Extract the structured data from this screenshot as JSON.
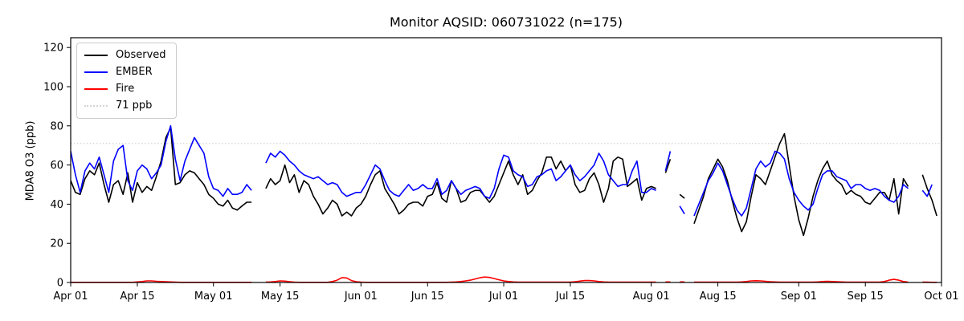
{
  "chart_data": {
    "type": "line",
    "title": "Monitor AQSID: 060731022 (n=175)",
    "xlabel": "",
    "ylabel": "MDA8 O3 (ppb)",
    "ylim": [
      0,
      125
    ],
    "y_ticks": [
      0,
      20,
      40,
      60,
      80,
      100,
      120
    ],
    "x_days_total": 183,
    "x_tick_days": [
      0,
      14,
      30,
      44,
      61,
      75,
      91,
      105,
      122,
      136,
      153,
      167,
      183
    ],
    "x_tick_labels": [
      "Apr 01",
      "Apr 15",
      "May 01",
      "May 15",
      "Jun 01",
      "Jun 15",
      "Jul 01",
      "Jul 15",
      "Aug 01",
      "Aug 15",
      "Sep 01",
      "Sep 15",
      "Oct 01"
    ],
    "grid": false,
    "legend_position": "upper-left",
    "reference_line": {
      "value": 71,
      "label": "71 ppb",
      "color": "#d3d3d3",
      "style": "dotted"
    },
    "legend": [
      {
        "id": "observed",
        "label": "Observed",
        "color": "#000000",
        "style": "solid"
      },
      {
        "id": "ember",
        "label": "EMBER",
        "color": "#0000ff",
        "style": "solid"
      },
      {
        "id": "fire",
        "label": "Fire",
        "color": "#ff0000",
        "style": "solid"
      },
      {
        "id": "ref71",
        "label": "71 ppb",
        "color": "#d3d3d3",
        "style": "dotted"
      }
    ],
    "series": [
      {
        "name": "Observed",
        "color": "#000000",
        "values": [
          52,
          46,
          45,
          53,
          57,
          55,
          61,
          50,
          41,
          50,
          52,
          45,
          56,
          41,
          51,
          46,
          49,
          47,
          54,
          62,
          74,
          79,
          50,
          51,
          55,
          57,
          56,
          53,
          50,
          45,
          43,
          40,
          39,
          42,
          38,
          37,
          39,
          41,
          41,
          null,
          null,
          48,
          53,
          50,
          52,
          60,
          51,
          55,
          46,
          52,
          50,
          44,
          40,
          35,
          38,
          42,
          40,
          34,
          36,
          34,
          38,
          40,
          44,
          50,
          55,
          57,
          48,
          44,
          40,
          35,
          37,
          40,
          41,
          41,
          39,
          44,
          45,
          51,
          43,
          41,
          52,
          48,
          41,
          42,
          46,
          47,
          47,
          44,
          41,
          44,
          50,
          56,
          62,
          55,
          50,
          55,
          45,
          47,
          52,
          56,
          64,
          64,
          58,
          62,
          57,
          60,
          50,
          46,
          47,
          53,
          56,
          50,
          41,
          48,
          62,
          64,
          63,
          49,
          51,
          53,
          42,
          48,
          49,
          48,
          null,
          56,
          63,
          null,
          45,
          43,
          null,
          30,
          37,
          44,
          53,
          58,
          63,
          59,
          52,
          42,
          33,
          26,
          31,
          44,
          55,
          53,
          50,
          57,
          64,
          71,
          76,
          60,
          44,
          32,
          24,
          33,
          44,
          52,
          58,
          62,
          55,
          52,
          50,
          45,
          47,
          45,
          44,
          41,
          40,
          43,
          46,
          46,
          42,
          53,
          35,
          53,
          49,
          null,
          null,
          55,
          48,
          42,
          34
        ]
      },
      {
        "name": "EMBER",
        "color": "#0000ff",
        "values": [
          67,
          55,
          46,
          57,
          61,
          58,
          64,
          55,
          46,
          62,
          68,
          70,
          52,
          47,
          57,
          60,
          58,
          53,
          56,
          60,
          72,
          80,
          63,
          52,
          62,
          68,
          74,
          70,
          66,
          54,
          48,
          47,
          44,
          48,
          45,
          45,
          46,
          50,
          47,
          null,
          null,
          61,
          66,
          64,
          67,
          65,
          62,
          60,
          57,
          55,
          54,
          53,
          54,
          52,
          50,
          51,
          50,
          46,
          44,
          45,
          46,
          46,
          50,
          55,
          60,
          58,
          52,
          47,
          45,
          44,
          47,
          50,
          47,
          48,
          50,
          48,
          48,
          53,
          45,
          47,
          52,
          48,
          45,
          47,
          48,
          49,
          48,
          44,
          43,
          48,
          58,
          65,
          64,
          57,
          55,
          54,
          49,
          50,
          54,
          55,
          57,
          58,
          52,
          54,
          57,
          60,
          55,
          52,
          54,
          57,
          60,
          66,
          62,
          55,
          52,
          49,
          50,
          50,
          57,
          62,
          46,
          46,
          48,
          47,
          null,
          57,
          67,
          null,
          39,
          35,
          null,
          34,
          40,
          46,
          52,
          56,
          61,
          57,
          50,
          43,
          37,
          34,
          38,
          48,
          58,
          62,
          59,
          61,
          67,
          66,
          63,
          53,
          46,
          42,
          39,
          37,
          40,
          48,
          55,
          57,
          57,
          54,
          53,
          52,
          48,
          50,
          50,
          48,
          47,
          48,
          47,
          44,
          42,
          41,
          44,
          50,
          48,
          null,
          null,
          47,
          44,
          50,
          null
        ]
      },
      {
        "name": "Fire",
        "color": "#ff0000",
        "values": [
          0.1,
          0.1,
          0.1,
          0.1,
          0.1,
          0.1,
          0.1,
          0.1,
          0.1,
          0.1,
          0.1,
          0.1,
          0.1,
          0.1,
          0.3,
          0.5,
          0.8,
          0.8,
          0.6,
          0.5,
          0.4,
          0.3,
          0.2,
          0.1,
          0.1,
          0.1,
          0.1,
          0.1,
          0.1,
          0.1,
          0.1,
          0.1,
          0.1,
          0.1,
          0.1,
          0.1,
          0.1,
          0.1,
          0.1,
          null,
          null,
          0.2,
          0.3,
          0.5,
          0.8,
          0.7,
          0.4,
          0.2,
          0.1,
          0.1,
          0.1,
          0.1,
          0.1,
          0.1,
          0.1,
          0.5,
          1.2,
          2.5,
          2.3,
          1.0,
          0.4,
          0.2,
          0.1,
          0.1,
          0.1,
          0.1,
          0.1,
          0.1,
          0.1,
          0.1,
          0.1,
          0.1,
          0.1,
          0.1,
          0.1,
          0.1,
          0.1,
          0.1,
          0.1,
          0.1,
          0.2,
          0.3,
          0.5,
          0.8,
          1.2,
          1.8,
          2.4,
          2.8,
          2.6,
          2.0,
          1.4,
          0.8,
          0.5,
          0.3,
          0.2,
          0.2,
          0.2,
          0.2,
          0.2,
          0.2,
          0.2,
          0.2,
          0.2,
          0.2,
          0.2,
          0.2,
          0.4,
          0.7,
          1.0,
          1.0,
          0.8,
          0.5,
          0.3,
          0.2,
          0.2,
          0.2,
          0.2,
          0.2,
          0.2,
          0.2,
          0.2,
          0.2,
          0.2,
          0.2,
          null,
          0.3,
          0.3,
          null,
          0.3,
          0.3,
          null,
          0.2,
          0.2,
          0.2,
          0.2,
          0.2,
          0.2,
          0.2,
          0.2,
          0.2,
          0.2,
          0.3,
          0.5,
          0.8,
          0.9,
          0.8,
          0.6,
          0.4,
          0.3,
          0.2,
          0.2,
          0.2,
          0.2,
          0.2,
          0.2,
          0.2,
          0.2,
          0.3,
          0.5,
          0.6,
          0.5,
          0.4,
          0.3,
          0.2,
          0.2,
          0.2,
          0.2,
          0.2,
          0.2,
          0.2,
          0.2,
          0.5,
          1.2,
          1.6,
          1.2,
          0.5,
          0.2,
          null,
          null,
          0.2,
          0.2,
          0.1,
          0.1
        ]
      }
    ]
  }
}
